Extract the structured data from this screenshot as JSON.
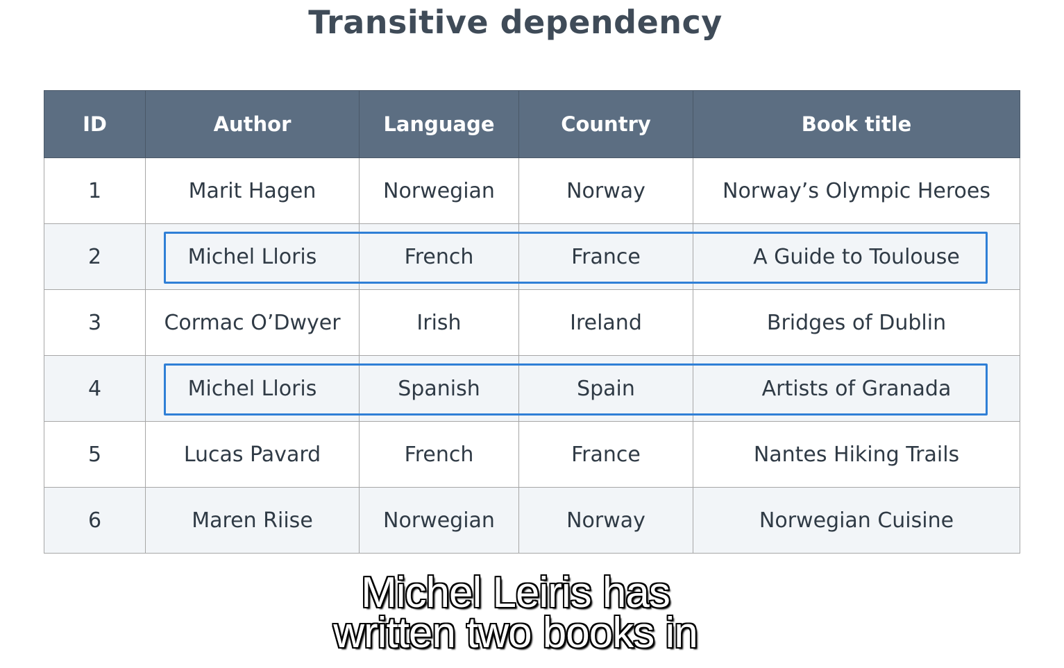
{
  "slide": {
    "title": "Transitive dependency"
  },
  "table": {
    "headers": [
      "ID",
      "Author",
      "Language",
      "Country",
      "Book title"
    ],
    "rows": [
      [
        "1",
        "Marit Hagen",
        "Norwegian",
        "Norway",
        "Norway’s Olympic Heroes"
      ],
      [
        "2",
        "Michel Lloris",
        "French",
        "France",
        "A Guide to Toulouse"
      ],
      [
        "3",
        "Cormac O’Dwyer",
        "Irish",
        "Ireland",
        "Bridges of Dublin"
      ],
      [
        "4",
        "Michel Lloris",
        "Spanish",
        "Spain",
        "Artists of Granada"
      ],
      [
        "5",
        "Lucas Pavard",
        "French",
        "France",
        "Nantes Hiking Trails"
      ],
      [
        "6",
        "Maren Riise",
        "Norwegian",
        "Norway",
        "Norwegian Cuisine"
      ]
    ]
  },
  "colors": {
    "header_bg": "#5c6e82",
    "highlight": "#2f7fd6",
    "title_text": "#3f4b58"
  },
  "subtitle": {
    "line1": "Michel Leiris has",
    "line2": "written two books in"
  }
}
